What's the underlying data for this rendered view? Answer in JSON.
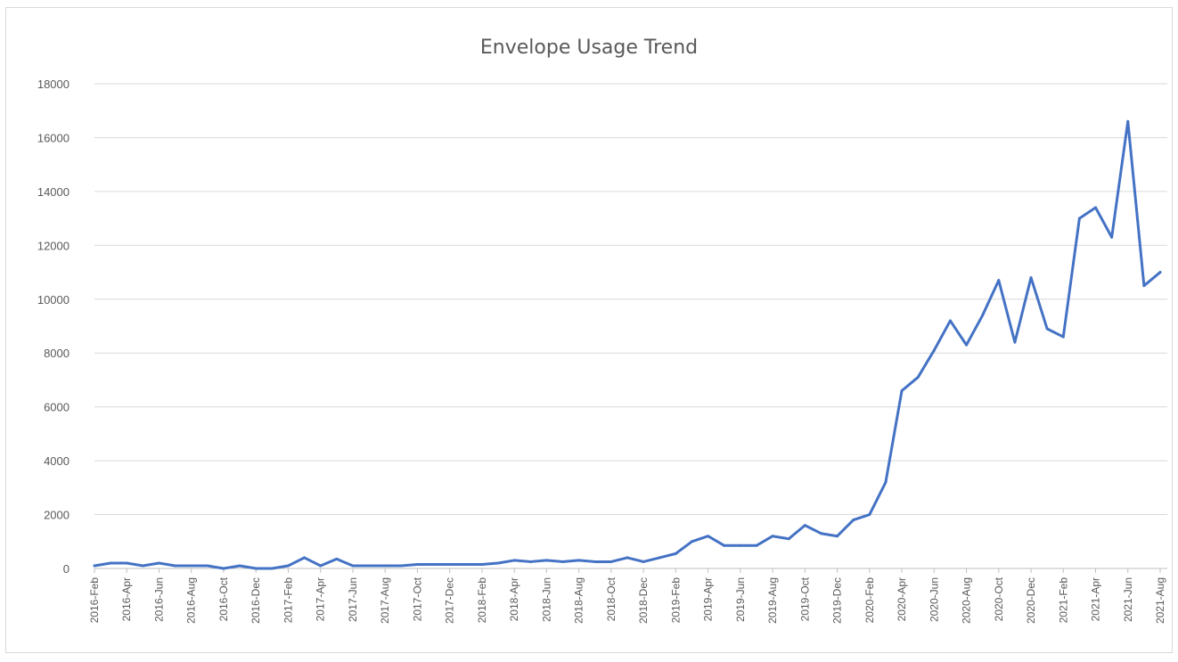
{
  "chart_data": {
    "type": "line",
    "title": "Envelope Usage Trend",
    "xlabel": "",
    "ylabel": "",
    "ylim": [
      0,
      18000
    ],
    "yticks": [
      0,
      2000,
      4000,
      6000,
      8000,
      10000,
      12000,
      14000,
      16000,
      18000
    ],
    "grid": true,
    "legend": "none",
    "line_color": "#4472c4",
    "x": [
      "2016-Feb",
      "2016-Mar",
      "2016-Apr",
      "2016-May",
      "2016-Jun",
      "2016-Jul",
      "2016-Aug",
      "2016-Sep",
      "2016-Oct",
      "2016-Nov",
      "2016-Dec",
      "2017-Jan",
      "2017-Feb",
      "2017-Mar",
      "2017-Apr",
      "2017-May",
      "2017-Jun",
      "2017-Jul",
      "2017-Aug",
      "2017-Sep",
      "2017-Oct",
      "2017-Nov",
      "2017-Dec",
      "2018-Jan",
      "2018-Feb",
      "2018-Mar",
      "2018-Apr",
      "2018-May",
      "2018-Jun",
      "2018-Jul",
      "2018-Aug",
      "2018-Sep",
      "2018-Oct",
      "2018-Nov",
      "2018-Dec",
      "2019-Jan",
      "2019-Feb",
      "2019-Mar",
      "2019-Apr",
      "2019-May",
      "2019-Jun",
      "2019-Jul",
      "2019-Aug",
      "2019-Sep",
      "2019-Oct",
      "2019-Nov",
      "2019-Dec",
      "2020-Jan",
      "2020-Feb",
      "2020-Mar",
      "2020-Apr",
      "2020-May",
      "2020-Jun",
      "2020-Jul",
      "2020-Aug",
      "2020-Sep",
      "2020-Oct",
      "2020-Nov",
      "2020-Dec",
      "2021-Jan",
      "2021-Feb",
      "2021-Mar",
      "2021-Apr",
      "2021-May",
      "2021-Jun",
      "2021-Jul",
      "2021-Aug"
    ],
    "xtick_labels": [
      "2016-Feb",
      "2016-Apr",
      "2016-Jun",
      "2016-Aug",
      "2016-Oct",
      "2016-Dec",
      "2017-Feb",
      "2017-Apr",
      "2017-Jun",
      "2017-Aug",
      "2017-Oct",
      "2017-Dec",
      "2018-Feb",
      "2018-Apr",
      "2018-Jun",
      "2018-Aug",
      "2018-Oct",
      "2018-Dec",
      "2019-Feb",
      "2019-Apr",
      "2019-Jun",
      "2019-Aug",
      "2019-Oct",
      "2019-Dec",
      "2020-Feb",
      "2020-Apr",
      "2020-Jun",
      "2020-Aug",
      "2020-Oct",
      "2020-Dec",
      "2021-Feb",
      "2021-Apr",
      "2021-Jun",
      "2021-Aug"
    ],
    "series": [
      {
        "values": [
          100,
          200,
          200,
          100,
          200,
          100,
          100,
          100,
          0,
          100,
          0,
          0,
          100,
          400,
          100,
          350,
          100,
          100,
          100,
          100,
          150,
          150,
          150,
          150,
          150,
          200,
          300,
          250,
          300,
          250,
          300,
          250,
          250,
          400,
          250,
          400,
          550,
          1000,
          1200,
          850,
          850,
          850,
          1200,
          1100,
          1600,
          1300,
          1200,
          1800,
          2000,
          3200,
          6600,
          7100,
          8100,
          9200,
          8300,
          9400,
          10700,
          8400,
          10800,
          8900,
          8600,
          13000,
          13400,
          12300,
          16600,
          10500,
          11000
        ]
      }
    ]
  }
}
